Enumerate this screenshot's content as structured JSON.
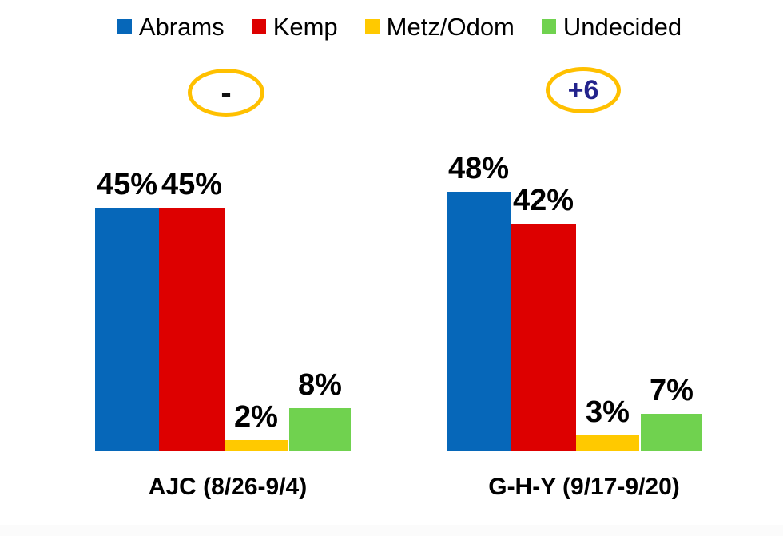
{
  "chart_data": {
    "type": "bar",
    "title": "",
    "unit": "%",
    "categories": [
      "AJC (8/26-9/4)",
      "G-H-Y (9/17-9/20)"
    ],
    "series": [
      {
        "name": "Abrams",
        "color": "#0667B9",
        "values": [
          45,
          48
        ]
      },
      {
        "name": "Kemp",
        "color": "#DD0000",
        "values": [
          45,
          42
        ]
      },
      {
        "name": "Metz/Odom",
        "color": "#FFC900",
        "values": [
          2,
          3
        ]
      },
      {
        "name": "Undecided",
        "color": "#70D24F",
        "values": [
          8,
          7
        ]
      }
    ],
    "data_labels": [
      [
        "45%",
        "45%",
        "2%",
        "8%"
      ],
      [
        "48%",
        "42%",
        "3%",
        "7%"
      ]
    ],
    "annotations": [
      {
        "text": "-",
        "target": "AJC (8/26-9/4)",
        "shape": "ellipse",
        "stroke": "#FFC000",
        "color": "#111111"
      },
      {
        "text": "+6",
        "target": "G-H-Y (9/17-9/20)",
        "shape": "ellipse",
        "stroke": "#FFC000",
        "color": "#23238C"
      }
    ],
    "legend": [
      "Abrams",
      "Kemp",
      "Metz/Odom",
      "Undecided"
    ],
    "legend_position": "top",
    "xlabel": "",
    "ylabel": "",
    "ylim": [
      0,
      50
    ],
    "grid": false,
    "axis_lines": false,
    "value_labels_shown": true
  }
}
